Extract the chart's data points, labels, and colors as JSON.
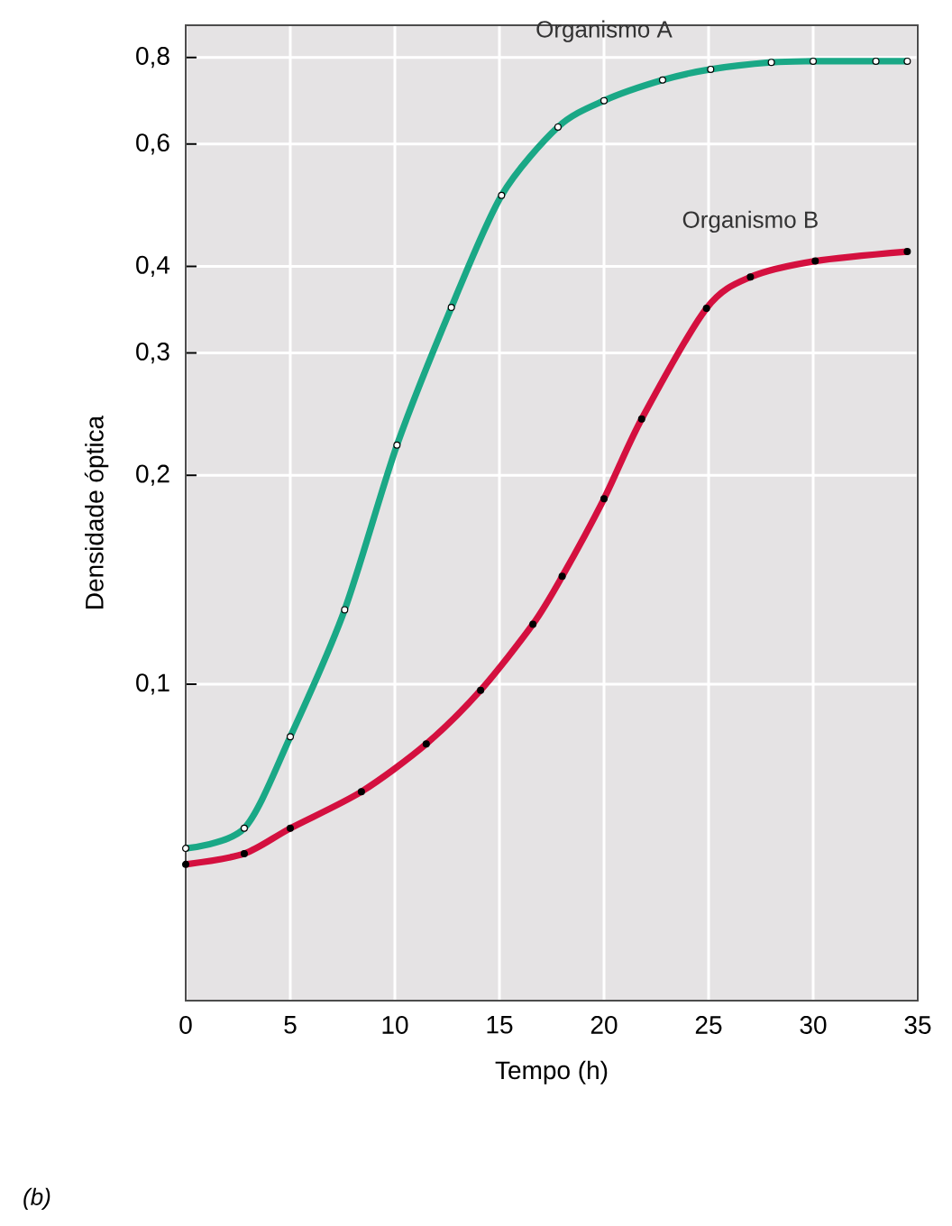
{
  "chart_data": {
    "type": "line",
    "xlabel": "Tempo (h)",
    "ylabel": "Densidade óptica",
    "series": [
      {
        "name": "Organismo A",
        "color": "#1aa886",
        "x": [
          0,
          2.8,
          5,
          7.6,
          10.1,
          12.7,
          15.1,
          17.8,
          20,
          22.8,
          25.1,
          28,
          30,
          33,
          34.5
        ],
        "values": [
          0.058,
          0.062,
          0.084,
          0.128,
          0.221,
          0.349,
          0.506,
          0.635,
          0.693,
          0.742,
          0.769,
          0.787,
          0.79,
          0.79,
          0.79
        ]
      },
      {
        "name": "Organismo B",
        "color": "#d4103f",
        "x": [
          0,
          2.8,
          5,
          8.4,
          11.5,
          14.1,
          16.6,
          18,
          20,
          21.8,
          24.9,
          27,
          30.1,
          34.5
        ],
        "values": [
          0.055,
          0.057,
          0.062,
          0.07,
          0.082,
          0.098,
          0.122,
          0.143,
          0.185,
          0.241,
          0.348,
          0.386,
          0.407,
          0.42
        ]
      }
    ],
    "xlim": [
      0,
      35
    ],
    "xticks": [
      0,
      5,
      10,
      15,
      20,
      25,
      30,
      35
    ],
    "ylim": [
      0.035,
      0.89
    ],
    "yticks": [
      {
        "value": 0.1,
        "label": "0,1"
      },
      {
        "value": 0.2,
        "label": "0,2"
      },
      {
        "value": 0.3,
        "label": "0,3"
      },
      {
        "value": 0.4,
        "label": "0,4"
      },
      {
        "value": 0.6,
        "label": "0,6"
      },
      {
        "value": 0.8,
        "label": "0,8"
      }
    ],
    "log": "y",
    "grid": true,
    "marker": "circle",
    "line_style": "solid",
    "annotations": [
      "(b)"
    ]
  }
}
